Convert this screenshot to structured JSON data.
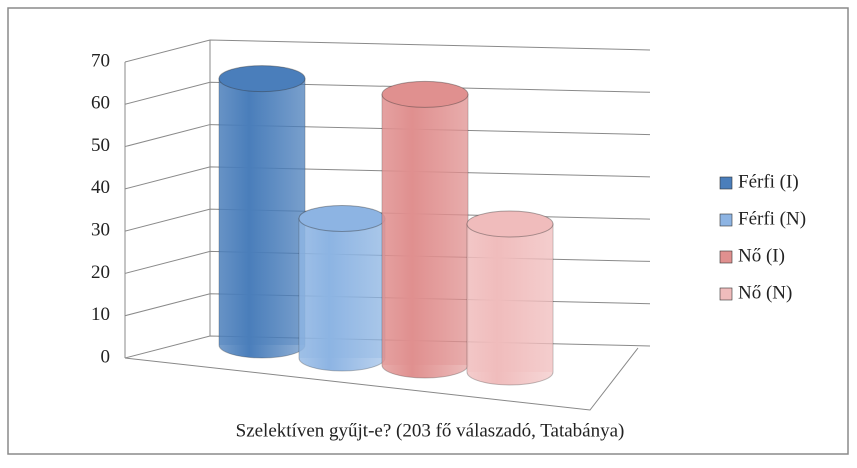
{
  "chart_data": {
    "type": "cylinder3d",
    "x_label": "Szelektíven gyűjt-e? (203 fő válaszadó, Tatabánya)",
    "series": [
      {
        "name": "Férfi (I)",
        "color": "#4a7ebb",
        "values": [
          63
        ]
      },
      {
        "name": "Férfi (N)",
        "color": "#8db4e3",
        "values": [
          33
        ]
      },
      {
        "name": "Nő (I)",
        "color": "#e0908f",
        "values": [
          64
        ]
      },
      {
        "name": "Nő (N)",
        "color": "#f0bcbc",
        "values": [
          35
        ]
      }
    ],
    "ylim": [
      0,
      70
    ],
    "yticks": [
      0,
      10,
      20,
      30,
      40,
      50,
      60,
      70
    ],
    "grid": true,
    "legend": "right"
  }
}
